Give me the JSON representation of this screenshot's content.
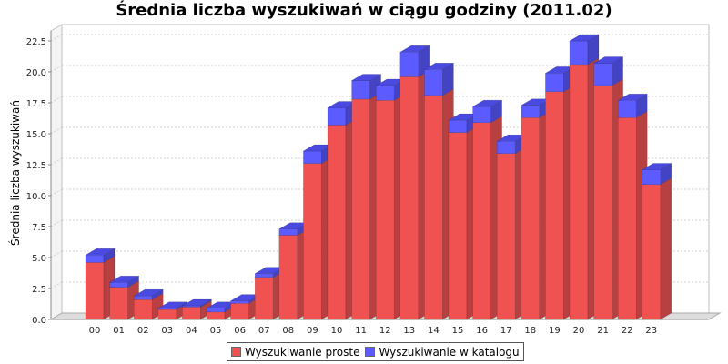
{
  "colors": {
    "series_proste_face": "#F05252",
    "series_proste_side": "#B84040",
    "series_proste_top": "#F58080",
    "series_katalog_face": "#5B5BFF",
    "series_katalog_side": "#4343C4",
    "series_katalog_top": "#4A4AE0",
    "plot_background": "#FFFFFF",
    "gridline": "#D0D0D0",
    "floor": "#DDDDDD"
  },
  "chart_data": {
    "type": "bar",
    "stacked": true,
    "three_d": true,
    "title": "Średnia liczba wyszukiwań w ciągu godziny (2011.02)",
    "xlabel": "",
    "ylabel": "Średnia liczba wyszukiwań",
    "ylim": [
      0,
      25
    ],
    "yticks": [
      "0.0",
      "2.5",
      "5.0",
      "7.5",
      "10.0",
      "12.5",
      "15.0",
      "17.5",
      "20.0",
      "22.5"
    ],
    "grid": true,
    "legend_position": "bottom",
    "categories": [
      "00",
      "01",
      "02",
      "03",
      "04",
      "05",
      "06",
      "07",
      "08",
      "09",
      "10",
      "11",
      "12",
      "13",
      "14",
      "15",
      "16",
      "17",
      "18",
      "19",
      "20",
      "21",
      "22",
      "23"
    ],
    "series": [
      {
        "name": "Wyszukiwanie proste",
        "values": [
          4.6,
          2.6,
          1.6,
          0.8,
          1.0,
          0.6,
          1.3,
          3.4,
          6.8,
          12.6,
          15.7,
          17.8,
          17.7,
          19.6,
          18.1,
          15.1,
          15.9,
          13.4,
          16.3,
          18.4,
          20.6,
          18.9,
          16.3,
          10.9
        ]
      },
      {
        "name": "Wyszukiwanie w katalogu",
        "values": [
          0.6,
          0.4,
          0.3,
          0.1,
          0.1,
          0.3,
          0.2,
          0.3,
          0.5,
          1.0,
          1.4,
          1.5,
          1.2,
          2.0,
          2.1,
          1.0,
          1.3,
          1.0,
          1.0,
          1.5,
          1.9,
          1.8,
          1.4,
          1.2
        ]
      }
    ]
  }
}
